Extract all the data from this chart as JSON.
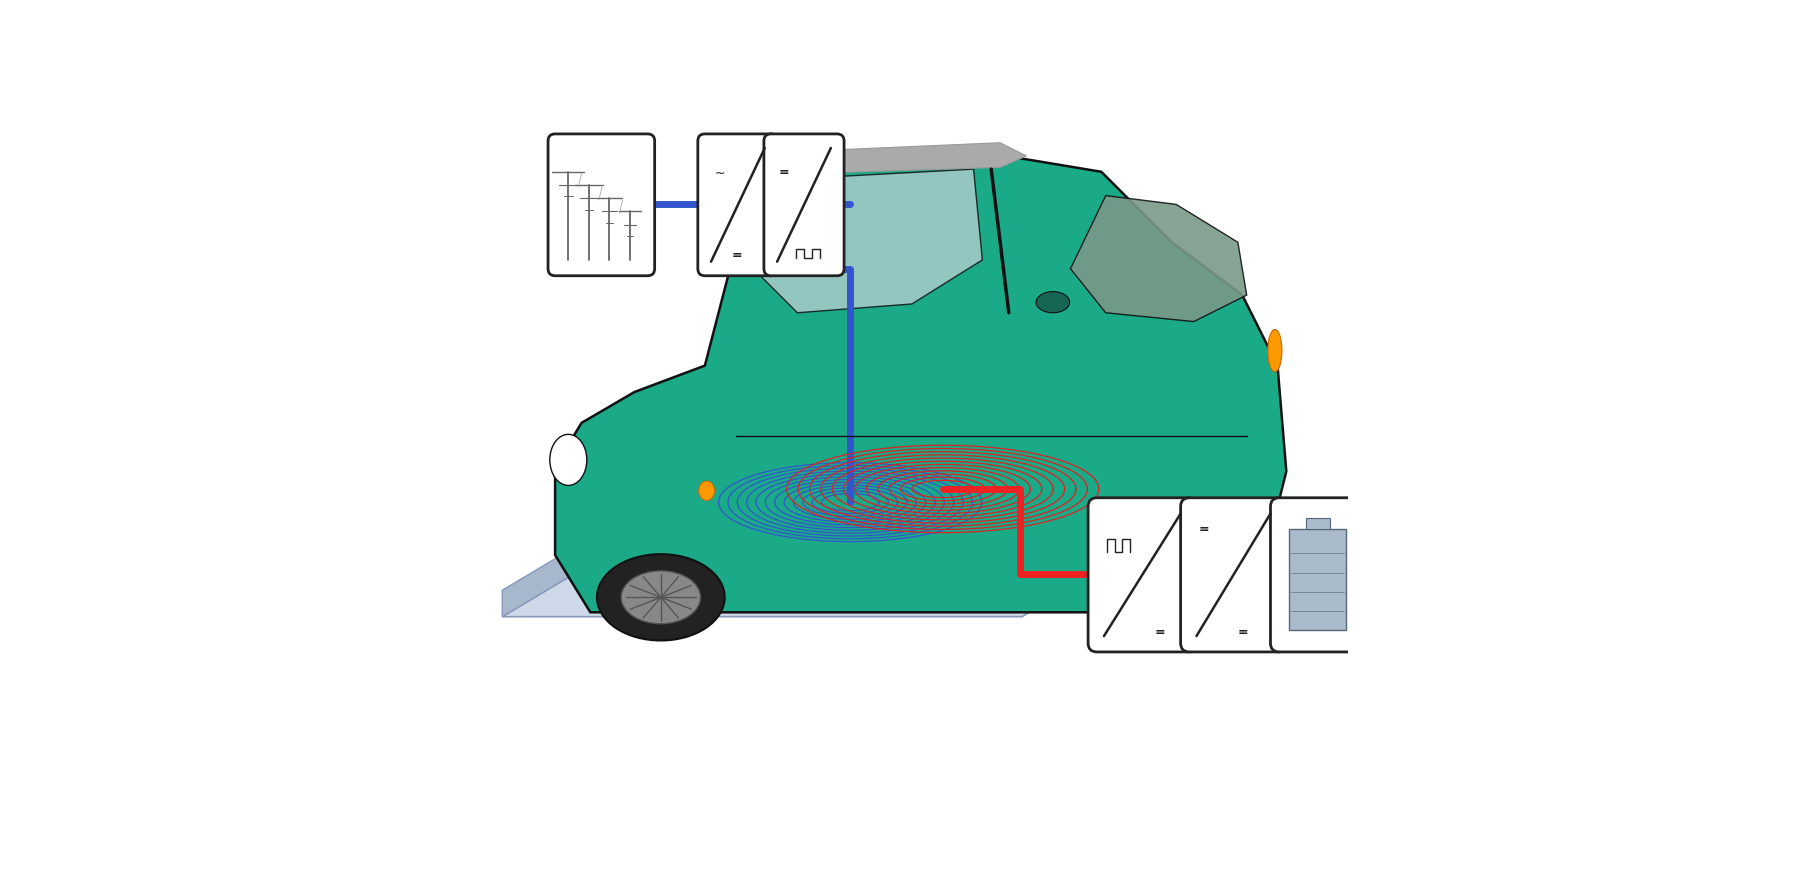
{
  "bg_color": "#ffffff",
  "pad_top_color": "#cdd9e8",
  "pad_front_color": "#a8b8cc",
  "pad_right_color": "#b0c0d8",
  "pad_edge_color": "#8899bb",
  "car_body_color": "#1aaa88",
  "car_outline_color": "#111111",
  "coil_color_red": "#dd2222",
  "coil_color_blue": "#3355cc",
  "wire_color_red": "#ee2222",
  "wire_color_blue": "#3355cc",
  "box_bg": "#ffffff",
  "box_border": "#222222",
  "figsize": [
    18.15,
    8.81
  ],
  "dpi": 100
}
